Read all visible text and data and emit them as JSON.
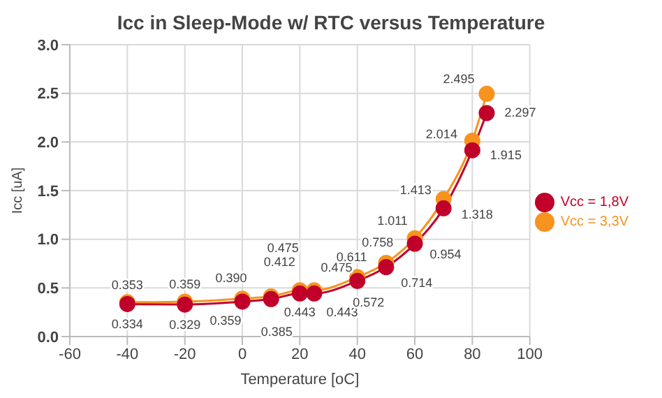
{
  "chart_data": {
    "type": "line",
    "title": "Icc in Sleep-Mode w/ RTC versus Temperature",
    "xlabel": "Temperature [oC]",
    "ylabel": "Icc [uA]",
    "x": [
      -40,
      -20,
      0,
      10,
      20,
      25,
      40,
      50,
      60,
      70,
      80,
      85
    ],
    "series": [
      {
        "name": "Vcc = 3,3V",
        "color": "#f7931e",
        "values": [
          0.353,
          0.359,
          0.39,
          0.412,
          0.475,
          0.475,
          0.611,
          0.758,
          1.011,
          1.413,
          2.014,
          2.495
        ],
        "value_labels": [
          "0.353",
          "0.359",
          "0.390",
          "0.412",
          "0.475",
          "0.475",
          "0.611",
          "0.758",
          "1.011",
          "1.413",
          "2.014",
          "2.495"
        ]
      },
      {
        "name": "Vcc = 1,8V",
        "color": "#c0002a",
        "values": [
          0.334,
          0.329,
          0.359,
          0.385,
          0.443,
          0.443,
          0.572,
          0.714,
          0.954,
          1.318,
          1.915,
          2.297
        ],
        "value_labels": [
          "0.334",
          "0.329",
          "0.359",
          "0.385",
          "0.443",
          "0.443",
          "0.572",
          "0.714",
          "0.954",
          "1.318",
          "1.915",
          "2.297"
        ]
      }
    ],
    "xlim": [
      -60,
      100
    ],
    "xticks": [
      -60,
      -40,
      -20,
      0,
      20,
      40,
      60,
      80,
      100
    ],
    "ylim": [
      0,
      3
    ],
    "yticks": [
      {
        "value": 0,
        "label": "0.0"
      },
      {
        "value": 0.5,
        "label": "0.5"
      },
      {
        "value": 1,
        "label": "1.0"
      },
      {
        "value": 1.5,
        "label": "1.5"
      },
      {
        "value": 2,
        "label": "2.0"
      },
      {
        "value": 2.5,
        "label": "2.5"
      },
      {
        "value": 3,
        "label": "3.0"
      }
    ],
    "grid": true,
    "legend": "right",
    "marker": "circle",
    "line_style": "solid",
    "data_labels": true
  }
}
